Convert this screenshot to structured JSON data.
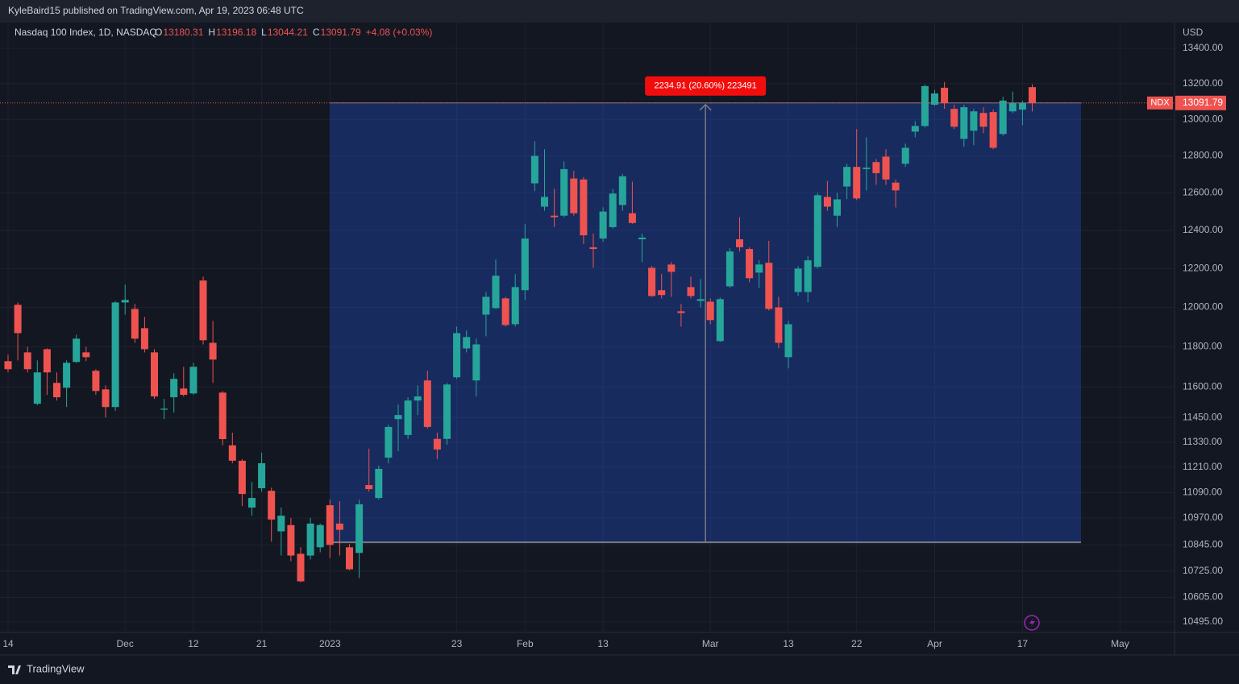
{
  "header": {
    "publisher": "KyleBaird15 published on TradingView.com, Apr 19, 2023 06:48 UTC"
  },
  "footer": {
    "brand": "TradingView"
  },
  "chart_data": {
    "type": "candlestick",
    "title": "Nasdaq 100 Index, 1D, NASDAQ",
    "ohlc_legend": [
      {
        "key": "O",
        "text": "13180.31"
      },
      {
        "key": "H",
        "text": "13196.18"
      },
      {
        "key": "L",
        "text": "13044.21"
      },
      {
        "key": "C",
        "text": "13091.79"
      }
    ],
    "change": "+4.08 (+0.03%)",
    "symbol_label": "NDX",
    "y_unit": "USD",
    "up_color": "#26a69a",
    "down_color": "#ef5350",
    "log_scale": true,
    "grid": true,
    "categories": [
      "14",
      null,
      null,
      null,
      null,
      null,
      null,
      null,
      null,
      null,
      null,
      null,
      "Dec",
      null,
      null,
      null,
      null,
      null,
      null,
      "12",
      null,
      null,
      null,
      null,
      null,
      null,
      "21",
      null,
      null,
      null,
      null,
      null,
      null,
      "2023",
      null,
      null,
      null,
      null,
      null,
      null,
      null,
      null,
      null,
      null,
      null,
      null,
      "23",
      null,
      null,
      null,
      null,
      null,
      null,
      "Feb",
      null,
      null,
      null,
      null,
      null,
      null,
      null,
      "13",
      null,
      null,
      null,
      null,
      null,
      null,
      null,
      null,
      null,
      null,
      "Mar",
      null,
      null,
      null,
      null,
      null,
      null,
      null,
      "13",
      null,
      null,
      null,
      null,
      null,
      null,
      "22",
      null,
      null,
      null,
      null,
      null,
      null,
      null,
      "Apr",
      null,
      null,
      null,
      null,
      null,
      null,
      null,
      null,
      "17",
      null,
      null,
      null,
      null,
      null,
      null,
      null,
      null,
      null,
      "May",
      null,
      null,
      null,
      null,
      null
    ],
    "open": [
      11728,
      12013,
      11772,
      11517,
      11788,
      11620,
      11596,
      11724,
      11772,
      11680,
      11588,
      11501,
      12025,
      11992,
      11894,
      11772,
      11488,
      11549,
      11592,
      11568,
      12138,
      11820,
      11572,
      11315,
      11241,
      11019,
      11110,
      11098,
      10908,
      10937,
      10804,
      10796,
      10834,
      11030,
      10944,
      10834,
      10808,
      11125,
      11064,
      11256,
      11442,
      11365,
      11533,
      11632,
      11346,
      11346,
      11648,
      11792,
      11632,
      11963,
      11996,
      12046,
      11914,
      12088,
      12651,
      12526,
      12478,
      12478,
      12677,
      12672,
      12311,
      12357,
      12417,
      12535,
      12491,
      12353,
      12204,
      12088,
      12221,
      11980,
      12104,
      12033,
      12029,
      11829,
      12108,
      12353,
      12302,
      12179,
      12230,
      12000,
      11748,
      12079,
      12079,
      12209,
      12578,
      12478,
      12634,
      12740,
      12728,
      12766,
      12796,
      12655,
      12757,
      12933,
      12964,
      13082,
      13177,
      13059,
      12893,
      12938,
      13036,
      13041,
      12920,
      13045,
      13055,
      13180.31,
      null,
      null,
      null,
      null,
      null,
      null,
      null,
      null,
      null,
      null,
      null,
      null,
      null,
      null
    ],
    "high": [
      11760,
      12025,
      11800,
      11732,
      11792,
      11672,
      11732,
      11861,
      11800,
      11688,
      11608,
      12033,
      12117,
      12017,
      11951,
      11788,
      11541,
      11668,
      11700,
      11720,
      12158,
      11931,
      11580,
      11376,
      11249,
      11140,
      11280,
      11113,
      11019,
      10970,
      10834,
      10970,
      10944,
      11056,
      11049,
      10849,
      11056,
      11299,
      11218,
      11415,
      11513,
      11549,
      11608,
      11680,
      11376,
      11620,
      11902,
      11882,
      11841,
      12079,
      12247,
      12054,
      12171,
      12435,
      12880,
      12836,
      12621,
      12770,
      12719,
      12685,
      12383,
      12522,
      12621,
      12702,
      12660,
      12383,
      12213,
      12171,
      12234,
      12017,
      12158,
      12146,
      12046,
      12050,
      12306,
      12470,
      12311,
      12243,
      12345,
      12054,
      11931,
      12213,
      12264,
      12600,
      12664,
      12600,
      12757,
      12947,
      12902,
      12783,
      12836,
      12672,
      12867,
      12991,
      13195,
      13164,
      13209,
      13082,
      13082,
      13059,
      13068,
      13055,
      13127,
      13155,
      13105,
      13196.18,
      null,
      null,
      null,
      null,
      null,
      null,
      null,
      null,
      null,
      null,
      null,
      null,
      null,
      null
    ],
    "low": [
      11672,
      11732,
      11672,
      11510,
      11561,
      11533,
      11501,
      11720,
      11728,
      11561,
      11450,
      11482,
      11963,
      11820,
      11772,
      11541,
      11442,
      11474,
      11553,
      11561,
      11812,
      11620,
      11315,
      11229,
      11026,
      10981,
      11094,
      10860,
      10796,
      10770,
      10674,
      10778,
      10811,
      10785,
      10796,
      10729,
      10693,
      11094,
      11056,
      11229,
      11287,
      11346,
      11462,
      11396,
      11249,
      11318,
      11640,
      11772,
      11553,
      11853,
      11992,
      11902,
      11902,
      12038,
      12609,
      12504,
      12417,
      12470,
      12478,
      12328,
      12204,
      12340,
      12409,
      12504,
      12435,
      12234,
      12054,
      12046,
      12054,
      11902,
      12046,
      12000,
      11914,
      11824,
      12100,
      12289,
      12129,
      12100,
      11984,
      11792,
      11692,
      12058,
      12025,
      12200,
      12504,
      12417,
      12566,
      12561,
      12613,
      12643,
      12643,
      12522,
      12740,
      12902,
      12956,
      13077,
      13059,
      12947,
      12849,
      12858,
      12924,
      12836,
      12911,
      13036,
      12969,
      13044.21,
      null,
      null,
      null,
      null,
      null,
      null,
      null,
      null,
      null,
      null,
      null,
      null,
      null,
      null
    ],
    "close": [
      11688,
      11869,
      11688,
      11672,
      11672,
      11549,
      11720,
      11841,
      11748,
      11580,
      11501,
      12025,
      12038,
      11841,
      11788,
      11553,
      11493,
      11640,
      11561,
      11700,
      11833,
      11736,
      11345,
      11241,
      11083,
      11064,
      11229,
      10963,
      10981,
      10796,
      10678,
      10944,
      10937,
      10845,
      10915,
      10733,
      11034,
      11106,
      11202,
      11404,
      11462,
      11533,
      11553,
      11404,
      11295,
      11612,
      11869,
      11849,
      11812,
      12054,
      12163,
      11910,
      12104,
      12357,
      12800,
      12578,
      12470,
      12728,
      12491,
      12374,
      12302,
      12500,
      12596,
      12689,
      12439,
      12362,
      12058,
      12063,
      12183,
      11971,
      12058,
      12042,
      11935,
      12042,
      12289,
      12311,
      12150,
      12221,
      11992,
      11820,
      11914,
      12200,
      12243,
      12587,
      12526,
      12565,
      12740,
      12570,
      12736,
      12706,
      12672,
      12613,
      12844,
      12964,
      13186,
      13145,
      13091,
      12960,
      13068,
      13045,
      12960,
      12844,
      13105,
      13091,
      13091,
      13091.79,
      null,
      null,
      null,
      null,
      null,
      null,
      null,
      null,
      null,
      null,
      null,
      null,
      null,
      null
    ],
    "ylim": [
      10448,
      13548
    ],
    "yticks": [
      {
        "value": 13400,
        "label": "13400.00"
      },
      {
        "value": 13200,
        "label": "13200.00"
      },
      {
        "value": 13000,
        "label": "13000.00"
      },
      {
        "value": 12800,
        "label": "12800.00"
      },
      {
        "value": 12600,
        "label": "12600.00"
      },
      {
        "value": 12400,
        "label": "12400.00"
      },
      {
        "value": 12200,
        "label": "12200.00"
      },
      {
        "value": 12000,
        "label": "12000.00"
      },
      {
        "value": 11800,
        "label": "11800.00"
      },
      {
        "value": 11600,
        "label": "11600.00"
      },
      {
        "value": 11450,
        "label": "11450.00"
      },
      {
        "value": 11330,
        "label": "11330.00"
      },
      {
        "value": 11210,
        "label": "11210.00"
      },
      {
        "value": 11090,
        "label": "11090.00"
      },
      {
        "value": 10970,
        "label": "10970.00"
      },
      {
        "value": 10845,
        "label": "10845.00"
      },
      {
        "value": 10725,
        "label": "10725.00"
      },
      {
        "value": 10605,
        "label": "10605.00"
      },
      {
        "value": 10495,
        "label": "10495.00"
      }
    ],
    "measure": {
      "label": "2234.91 (20.60%) 223491",
      "start": {
        "bar": 33,
        "price": 10856.88
      },
      "end": {
        "bar": 110,
        "price": 13091.79
      }
    }
  }
}
